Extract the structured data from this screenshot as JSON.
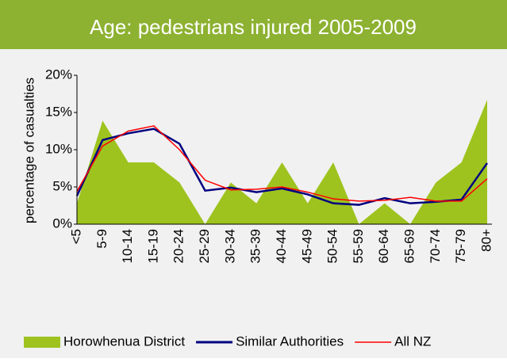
{
  "chart_data": {
    "type": "area_line",
    "title": "Age: pedestrians  injured 2005-2009",
    "y_label": "percentage of casualties",
    "categories": [
      "<5",
      "5-9",
      "10-14",
      "15-19",
      "20-24",
      "25-29",
      "30-34",
      "35-39",
      "40-44",
      "45-49",
      "50-54",
      "55-59",
      "60-64",
      "65-69",
      "70-74",
      "75-79",
      "80+"
    ],
    "series": [
      {
        "name": "Horowhenua District",
        "kind": "area",
        "color": "#9ec31f",
        "values": [
          2.8,
          13.9,
          8.3,
          8.3,
          5.6,
          0,
          5.6,
          2.8,
          8.3,
          2.8,
          8.3,
          0,
          2.8,
          0,
          5.6,
          8.3,
          16.7
        ]
      },
      {
        "name": "Similar Authorities",
        "kind": "line",
        "color": "#000080",
        "values": [
          3.8,
          11.3,
          12.2,
          12.8,
          10.8,
          4.5,
          4.9,
          4.3,
          4.8,
          4.0,
          2.8,
          2.6,
          3.5,
          2.8,
          3.0,
          3.3,
          8.2
        ]
      },
      {
        "name": "All NZ",
        "kind": "line",
        "color": "#ff0000",
        "values": [
          4.4,
          10.5,
          12.5,
          13.2,
          10.0,
          5.9,
          4.6,
          4.7,
          5.0,
          4.3,
          3.4,
          3.1,
          3.2,
          3.6,
          3.1,
          3.1,
          6.1
        ]
      }
    ],
    "ylim": [
      0,
      20
    ],
    "yticks": [
      {
        "value": 0,
        "label": "0%"
      },
      {
        "value": 5,
        "label": "5%"
      },
      {
        "value": 10,
        "label": "10%"
      },
      {
        "value": 15,
        "label": "15%"
      },
      {
        "value": 20,
        "label": "20%"
      }
    ]
  }
}
